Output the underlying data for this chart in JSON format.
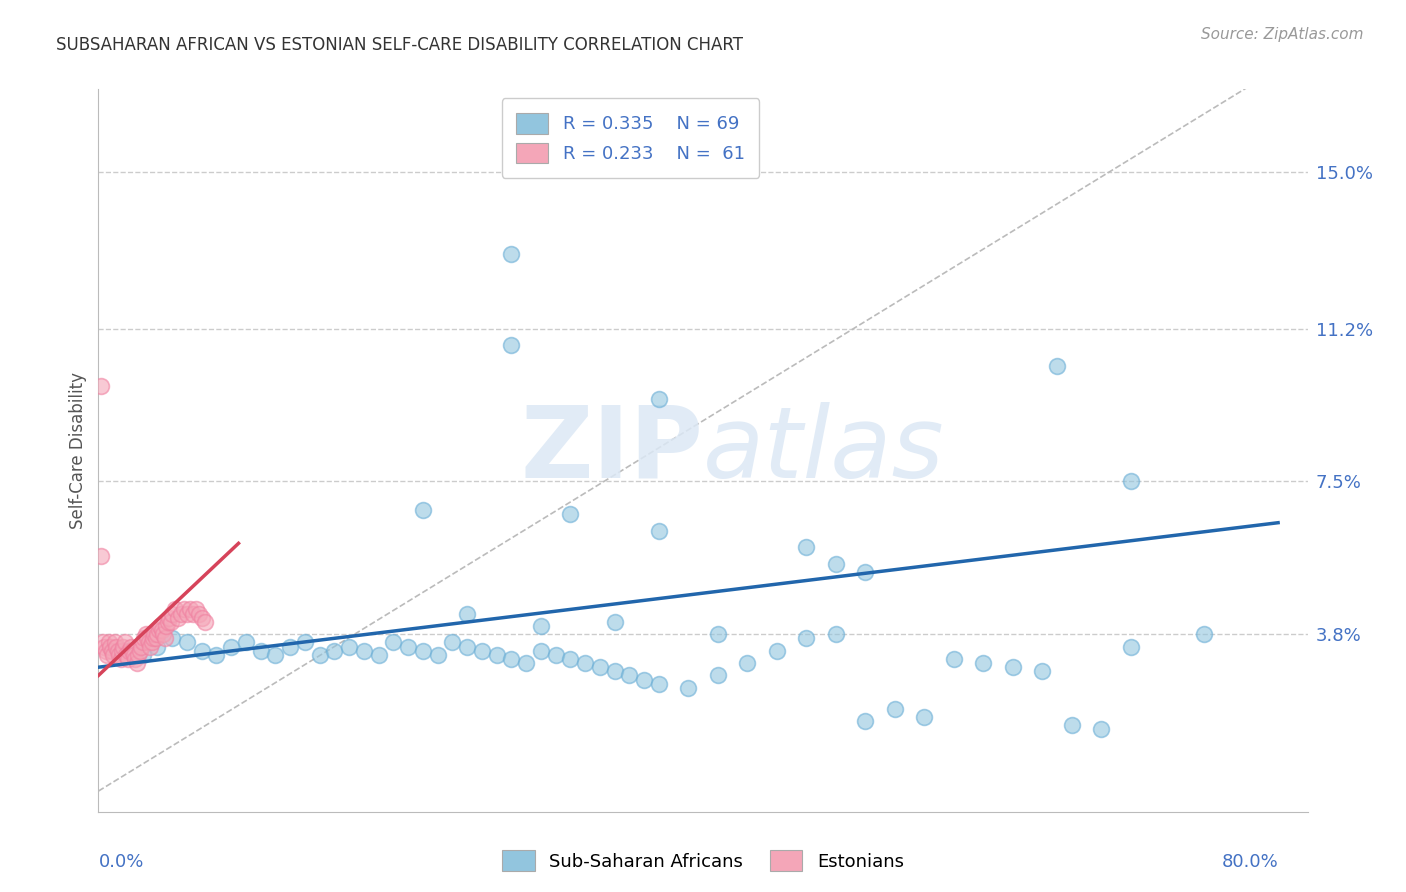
{
  "title": "SUBSAHARAN AFRICAN VS ESTONIAN SELF-CARE DISABILITY CORRELATION CHART",
  "source": "Source: ZipAtlas.com",
  "ylabel": "Self-Care Disability",
  "right_yticks": [
    "15.0%",
    "11.2%",
    "7.5%",
    "3.8%"
  ],
  "right_ytick_vals": [
    0.15,
    0.112,
    0.075,
    0.038
  ],
  "xlim": [
    0.0,
    0.82
  ],
  "ylim": [
    -0.005,
    0.17
  ],
  "legend_blue_R": "R = 0.335",
  "legend_blue_N": "N = 69",
  "legend_pink_R": "R = 0.233",
  "legend_pink_N": "N =  61",
  "blue_color": "#92c5de",
  "pink_color": "#f4a6b8",
  "blue_marker_edge": "#6aaed6",
  "pink_marker_edge": "#f080a0",
  "blue_line_color": "#2166ac",
  "pink_line_color": "#d6435a",
  "diag_color": "#bbbbbb",
  "title_color": "#333333",
  "axis_label_color": "#4472c4",
  "watermark_color": "#dce8f5",
  "grid_color": "#cccccc",
  "blue_line_x0": 0.0,
  "blue_line_x1": 0.8,
  "blue_line_y0": 0.03,
  "blue_line_y1": 0.065,
  "pink_line_x0": 0.0,
  "pink_line_x1": 0.095,
  "pink_line_y0": 0.028,
  "pink_line_y1": 0.06,
  "blue_x": [
    0.02,
    0.03,
    0.04,
    0.05,
    0.06,
    0.07,
    0.08,
    0.09,
    0.1,
    0.11,
    0.12,
    0.13,
    0.14,
    0.15,
    0.16,
    0.17,
    0.18,
    0.19,
    0.2,
    0.21,
    0.22,
    0.23,
    0.24,
    0.25,
    0.26,
    0.27,
    0.28,
    0.29,
    0.3,
    0.31,
    0.32,
    0.33,
    0.34,
    0.35,
    0.36,
    0.37,
    0.38,
    0.4,
    0.42,
    0.44,
    0.46,
    0.48,
    0.5,
    0.52,
    0.54,
    0.56,
    0.58,
    0.6,
    0.62,
    0.64,
    0.66,
    0.68,
    0.7,
    0.5,
    0.52,
    0.38,
    0.28,
    0.32,
    0.65,
    0.7,
    0.48,
    0.28,
    0.38,
    0.22,
    0.25,
    0.3,
    0.35,
    0.42,
    0.75
  ],
  "blue_y": [
    0.034,
    0.033,
    0.035,
    0.037,
    0.036,
    0.034,
    0.033,
    0.035,
    0.036,
    0.034,
    0.033,
    0.035,
    0.036,
    0.033,
    0.034,
    0.035,
    0.034,
    0.033,
    0.036,
    0.035,
    0.034,
    0.033,
    0.036,
    0.035,
    0.034,
    0.033,
    0.032,
    0.031,
    0.034,
    0.033,
    0.032,
    0.031,
    0.03,
    0.029,
    0.028,
    0.027,
    0.026,
    0.025,
    0.028,
    0.031,
    0.034,
    0.037,
    0.055,
    0.053,
    0.02,
    0.018,
    0.032,
    0.031,
    0.03,
    0.029,
    0.016,
    0.015,
    0.035,
    0.038,
    0.017,
    0.095,
    0.108,
    0.067,
    0.103,
    0.075,
    0.059,
    0.13,
    0.063,
    0.068,
    0.043,
    0.04,
    0.041,
    0.038,
    0.038
  ],
  "pink_x": [
    0.002,
    0.003,
    0.004,
    0.005,
    0.006,
    0.007,
    0.008,
    0.009,
    0.01,
    0.011,
    0.012,
    0.013,
    0.014,
    0.015,
    0.016,
    0.017,
    0.018,
    0.019,
    0.02,
    0.021,
    0.022,
    0.023,
    0.024,
    0.025,
    0.026,
    0.027,
    0.028,
    0.029,
    0.03,
    0.031,
    0.032,
    0.033,
    0.034,
    0.035,
    0.036,
    0.037,
    0.038,
    0.039,
    0.04,
    0.041,
    0.042,
    0.043,
    0.044,
    0.045,
    0.046,
    0.047,
    0.048,
    0.049,
    0.05,
    0.052,
    0.054,
    0.056,
    0.058,
    0.06,
    0.062,
    0.064,
    0.066,
    0.068,
    0.07,
    0.072,
    0.002
  ],
  "pink_y": [
    0.098,
    0.036,
    0.035,
    0.034,
    0.033,
    0.036,
    0.035,
    0.034,
    0.033,
    0.036,
    0.035,
    0.034,
    0.033,
    0.032,
    0.034,
    0.035,
    0.036,
    0.033,
    0.032,
    0.034,
    0.035,
    0.034,
    0.033,
    0.032,
    0.031,
    0.033,
    0.034,
    0.035,
    0.036,
    0.037,
    0.038,
    0.037,
    0.036,
    0.035,
    0.036,
    0.037,
    0.038,
    0.037,
    0.038,
    0.039,
    0.04,
    0.039,
    0.038,
    0.037,
    0.04,
    0.041,
    0.042,
    0.041,
    0.043,
    0.044,
    0.042,
    0.043,
    0.044,
    0.043,
    0.044,
    0.043,
    0.044,
    0.043,
    0.042,
    0.041,
    0.057
  ]
}
